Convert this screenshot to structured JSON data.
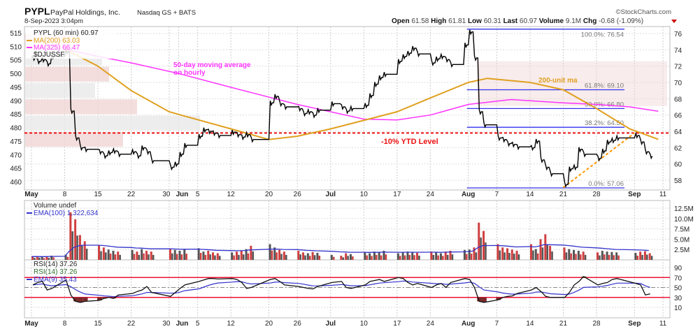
{
  "header": {
    "symbol": "PYPL",
    "company": "PayPal Holdings, Inc.",
    "exchange": "Nasdaq GS + BATS",
    "datetime": "8-Sep-2023 3:04pm",
    "watermark": "©StockCharts.com",
    "open_label": "Open",
    "open": "61.58",
    "high_label": "High",
    "high": "61.81",
    "low_label": "Low",
    "low": "60.31",
    "last_label": "Last",
    "last": "60.97",
    "volume_label": "Volume",
    "volume": "9.1M",
    "chg_label": "Chg",
    "chg": "-0.68 (-1.09%)",
    "chg_color": "#cc0000"
  },
  "legend": {
    "price": "PYPL (60 min) 60.97",
    "ma200": "MA(200) 63.03",
    "ma325": "MA(325) 66.47",
    "overlay": "$DJUSSF",
    "volume": "Volume undef",
    "ema100": "EMA(100) 1,322,634",
    "rsi1": "RSI(14) 37.26",
    "rsi2": "RSI(14) 37.26",
    "ema9": "EMA(9) 35.43"
  },
  "colors": {
    "price": "#000000",
    "ma200": "#e0a020",
    "ma325": "#ff33ff",
    "fib": "#3333ee",
    "ytd": "#ee1111",
    "trend": "#ff9900",
    "vol_up": "#555555",
    "vol_down": "#d04040",
    "ema": "#3333cc",
    "rsi_band": "#ee1133",
    "rsi_low_fill": "#7a2a2a",
    "rsi_high_fill": "#2e6b2e",
    "vbp": "#f0d4d4"
  },
  "annotations": {
    "ma50_line1": "50-day moving average",
    "ma50_line2": "on hourly",
    "ma200": "200-unit ma",
    "ytd": "-10% YTD Level"
  },
  "chart_data": [
    {
      "type": "line",
      "name": "price",
      "right_axis": {
        "ticks": [
          58,
          60,
          62,
          64,
          66,
          68,
          70,
          72,
          74,
          76
        ],
        "range": [
          56.8,
          76.9
        ]
      },
      "left_axis": {
        "ticks": [
          460,
          465,
          470,
          475,
          480,
          485,
          490,
          495,
          500,
          505,
          510,
          515
        ]
      },
      "x_ticks": [
        {
          "label": "May",
          "date": "2023-05-01",
          "bold": true
        },
        {
          "label": "8",
          "date": "2023-05-08"
        },
        {
          "label": "15",
          "date": "2023-05-15"
        },
        {
          "label": "22",
          "date": "2023-05-22"
        },
        {
          "label": "30",
          "date": "2023-05-30"
        },
        {
          "label": "Jun",
          "date": "2023-06-01",
          "bold": true
        },
        {
          "label": "5",
          "date": "2023-06-05"
        },
        {
          "label": "12",
          "date": "2023-06-12"
        },
        {
          "label": "20",
          "date": "2023-06-20"
        },
        {
          "label": "26",
          "date": "2023-06-26"
        },
        {
          "label": "Jul",
          "date": "2023-07-03",
          "bold": true
        },
        {
          "label": "10",
          "date": "2023-07-10"
        },
        {
          "label": "17",
          "date": "2023-07-17"
        },
        {
          "label": "24",
          "date": "2023-07-24"
        },
        {
          "label": "Aug",
          "date": "2023-08-01",
          "bold": true
        },
        {
          "label": "7",
          "date": "2023-08-07"
        },
        {
          "label": "14",
          "date": "2023-08-14"
        },
        {
          "label": "21",
          "date": "2023-08-21"
        },
        {
          "label": "28",
          "date": "2023-08-28"
        },
        {
          "label": "Sep",
          "date": "2023-09-05",
          "bold": true
        },
        {
          "label": "11",
          "date": "2023-09-11"
        }
      ],
      "dates": [
        "05-01",
        "05-02",
        "05-03",
        "05-04",
        "05-05",
        "05-08",
        "05-09",
        "05-10",
        "05-11",
        "05-12",
        "05-15",
        "05-16",
        "05-17",
        "05-18",
        "05-19",
        "05-22",
        "05-23",
        "05-24",
        "05-25",
        "05-26",
        "05-30",
        "05-31",
        "06-01",
        "06-02",
        "06-05",
        "06-06",
        "06-07",
        "06-08",
        "06-09",
        "06-12",
        "06-13",
        "06-14",
        "06-15",
        "06-16",
        "06-20",
        "06-21",
        "06-22",
        "06-23",
        "06-26",
        "06-27",
        "06-28",
        "06-29",
        "06-30",
        "07-03",
        "07-05",
        "07-06",
        "07-07",
        "07-10",
        "07-11",
        "07-12",
        "07-13",
        "07-14",
        "07-17",
        "07-18",
        "07-19",
        "07-20",
        "07-21",
        "07-24",
        "07-25",
        "07-26",
        "07-27",
        "07-28",
        "07-31",
        "08-01",
        "08-02",
        "08-03",
        "08-04",
        "08-07",
        "08-08",
        "08-09",
        "08-10",
        "08-11",
        "08-14",
        "08-15",
        "08-16",
        "08-17",
        "08-18",
        "08-21",
        "08-22",
        "08-23",
        "08-24",
        "08-25",
        "08-28",
        "08-29",
        "08-30",
        "08-31",
        "09-01",
        "09-05",
        "09-06",
        "09-07",
        "09-08"
      ],
      "close": [
        73.0,
        72.6,
        72.8,
        72.3,
        73.2,
        73.8,
        66.5,
        63.2,
        62.0,
        61.8,
        61.5,
        61.0,
        61.4,
        61.6,
        61.2,
        61.5,
        61.0,
        62.0,
        61.5,
        60.4,
        59.6,
        60.0,
        61.2,
        62.3,
        63.4,
        64.2,
        64.0,
        63.8,
        63.5,
        63.9,
        63.6,
        63.3,
        63.6,
        63.0,
        67.5,
        68.3,
        67.4,
        67.0,
        66.8,
        66.2,
        66.4,
        66.0,
        66.6,
        67.4,
        67.0,
        66.5,
        66.8,
        67.2,
        68.4,
        69.8,
        70.6,
        71.0,
        72.6,
        73.2,
        73.6,
        74.2,
        73.5,
        72.4,
        72.9,
        73.2,
        72.8,
        72.2,
        74.6,
        76.2,
        73.0,
        66.4,
        64.8,
        63.2,
        63.0,
        62.5,
        62.4,
        62.1,
        62.0,
        62.8,
        60.5,
        59.6,
        58.8,
        57.5,
        59.4,
        59.6,
        61.8,
        61.2,
        60.7,
        61.6,
        62.7,
        62.9,
        63.2,
        63.5,
        62.7,
        61.5,
        60.97
      ],
      "ma200": [
        [
          "05-08",
          74.1
        ],
        [
          "05-15",
          72.0
        ],
        [
          "05-22",
          69.0
        ],
        [
          "05-30",
          66.4
        ],
        [
          "06-12",
          64.3
        ],
        [
          "06-20",
          63.0
        ],
        [
          "06-26",
          63.4
        ],
        [
          "07-03",
          64.3
        ],
        [
          "07-17",
          66.4
        ],
        [
          "07-24",
          68.1
        ],
        [
          "08-01",
          70.0
        ],
        [
          "08-05",
          70.5
        ],
        [
          "08-14",
          70.0
        ],
        [
          "08-21",
          69.1
        ],
        [
          "08-28",
          66.8
        ],
        [
          "09-04",
          64.3
        ],
        [
          "09-10",
          63.03
        ]
      ],
      "ma325": [
        [
          "05-08",
          74.1
        ],
        [
          "05-15",
          73.2
        ],
        [
          "05-22",
          72.4
        ],
        [
          "06-01",
          71.1
        ],
        [
          "06-12",
          69.4
        ],
        [
          "06-26",
          67.3
        ],
        [
          "07-10",
          65.5
        ],
        [
          "07-17",
          65.4
        ],
        [
          "07-24",
          66.0
        ],
        [
          "08-01",
          67.3
        ],
        [
          "08-10",
          67.9
        ],
        [
          "08-21",
          67.5
        ],
        [
          "08-28",
          67.3
        ],
        [
          "09-04",
          67.0
        ],
        [
          "09-10",
          66.47
        ]
      ],
      "fib_levels": [
        {
          "label": "100.0%: 76.54",
          "value": 76.54
        },
        {
          "label": "61.8%: 69.10",
          "value": 69.1
        },
        {
          "label": "50.0%: 66.80",
          "value": 66.8
        },
        {
          "label": "38.2%: 64.50",
          "value": 64.5
        },
        {
          "label": "0.0%: 57.06",
          "value": 57.06
        }
      ],
      "fib_start": "08-01",
      "ytd_level": 63.8,
      "trendline": [
        [
          "08-21",
          57.1
        ],
        [
          "09-05",
          63.8
        ]
      ]
    },
    {
      "type": "bar",
      "name": "volume",
      "unit": "M",
      "ticks": [
        {
          "label": "2.5M",
          "value": 2.5
        },
        {
          "label": "5.0M",
          "value": 5
        },
        {
          "label": "7.5M",
          "value": 7.5
        },
        {
          "label": "10.0M",
          "value": 10
        },
        {
          "label": "12.5M",
          "value": 12.5
        }
      ],
      "values": [
        0.8,
        0.9,
        0.7,
        0.8,
        1.0,
        1.2,
        11.5,
        9.8,
        6.0,
        4.5,
        3.5,
        3.0,
        2.5,
        2.2,
        2.0,
        2.4,
        2.0,
        2.6,
        2.2,
        2.0,
        2.6,
        2.4,
        2.2,
        2.5,
        2.8,
        2.0,
        2.2,
        1.8,
        1.6,
        1.8,
        2.0,
        2.2,
        2.6,
        3.4,
        3.8,
        3.0,
        2.4,
        2.0,
        2.2,
        1.8,
        1.6,
        1.9,
        1.7,
        1.2,
        1.0,
        1.6,
        1.4,
        1.8,
        1.6,
        2.0,
        1.8,
        2.2,
        1.6,
        1.8,
        2.0,
        1.9,
        1.7,
        2.0,
        1.8,
        1.6,
        2.0,
        2.2,
        2.4,
        2.5,
        3.0,
        9.0,
        7.0,
        3.8,
        3.0,
        2.8,
        2.5,
        2.2,
        3.8,
        2.6,
        5.0,
        6.2,
        3.4,
        3.0,
        2.6,
        2.4,
        2.2,
        2.0,
        1.8,
        2.2,
        2.0,
        1.9,
        1.8,
        1.7,
        2.0,
        2.1,
        1.6
      ]
    },
    {
      "type": "line",
      "name": "rsi",
      "ticks": [
        10,
        30,
        50,
        70,
        90
      ],
      "bands": [
        30,
        50,
        70
      ],
      "values": [
        55,
        60,
        62,
        45,
        48,
        65,
        35,
        22,
        20,
        22,
        24,
        28,
        30,
        28,
        35,
        38,
        42,
        45,
        52,
        40,
        32,
        40,
        48,
        55,
        62,
        65,
        68,
        68,
        67,
        68,
        66,
        60,
        48,
        50,
        66,
        68,
        62,
        55,
        52,
        50,
        48,
        47,
        52,
        60,
        62,
        50,
        48,
        55,
        62,
        64,
        66,
        62,
        70,
        68,
        60,
        55,
        58,
        50,
        55,
        58,
        50,
        60,
        68,
        66,
        50,
        22,
        20,
        25,
        30,
        32,
        33,
        38,
        45,
        50,
        42,
        32,
        30,
        30,
        40,
        55,
        62,
        72,
        55,
        58,
        60,
        66,
        68,
        58,
        55,
        35,
        37.26
      ]
    }
  ]
}
